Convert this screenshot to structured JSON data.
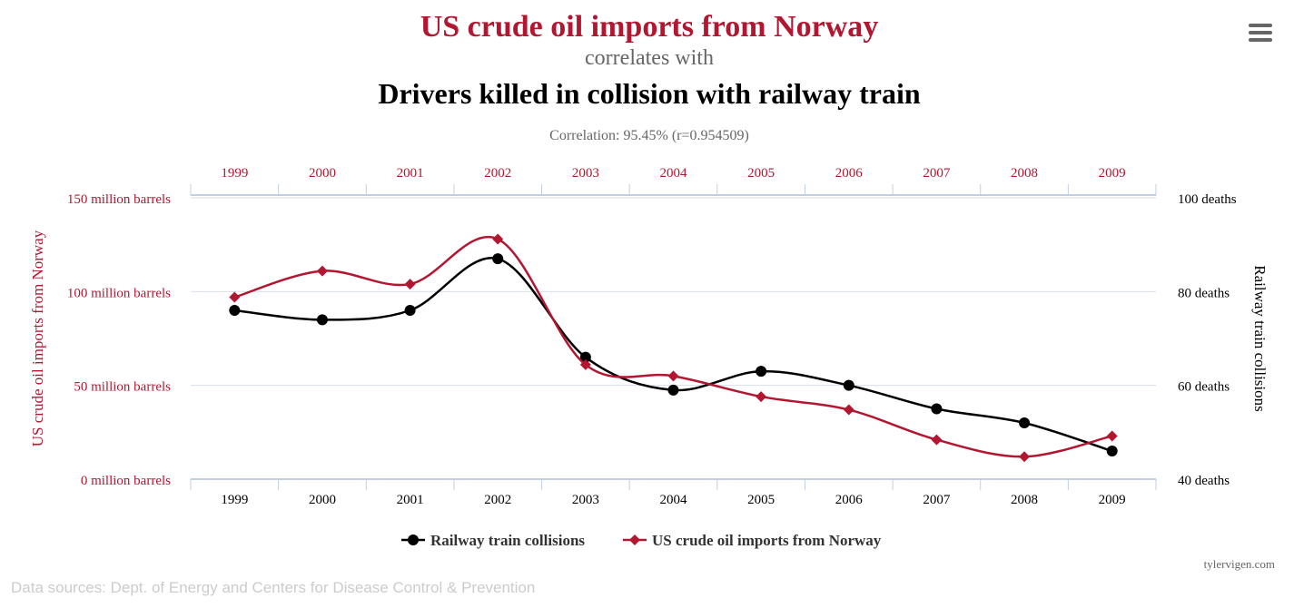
{
  "colors": {
    "series_a": "#b31630",
    "series_b": "#000000",
    "axis": "#c2cfe0",
    "grid": "#d8dde6",
    "subtle": "#666666",
    "footer": "#cccccc"
  },
  "icons": {
    "menu": "hamburger-menu-icon"
  },
  "chart_data": {
    "type": "line",
    "title": "US crude oil imports from Norway",
    "connector": "correlates with",
    "subtitle": "Drivers killed in collision with railway train",
    "correlation": "Correlation: 95.45% (r=0.954509)",
    "x": [
      "1999",
      "2000",
      "2001",
      "2002",
      "2003",
      "2004",
      "2005",
      "2006",
      "2007",
      "2008",
      "2009"
    ],
    "y_left": {
      "label": "US crude oil imports from Norway",
      "range": [
        0,
        150
      ],
      "ticks": [
        0,
        50,
        100,
        150
      ],
      "tick_labels": [
        "0 million barrels",
        "50 million barrels",
        "100 million barrels",
        "150 million barrels"
      ]
    },
    "y_right": {
      "label": "Railway train collisions",
      "range": [
        40,
        100
      ],
      "ticks": [
        40,
        60,
        80,
        100
      ],
      "tick_labels": [
        "40 deaths",
        "60 deaths",
        "80 deaths",
        "100 deaths"
      ]
    },
    "series": [
      {
        "name": "Railway train collisions",
        "axis": "right",
        "marker": "circle",
        "color": "#000000",
        "values": [
          76,
          74,
          76,
          87,
          66,
          59,
          63,
          60,
          55,
          52,
          46
        ]
      },
      {
        "name": "US crude oil imports from Norway",
        "axis": "left",
        "marker": "diamond",
        "color": "#b31630",
        "values": [
          97,
          111,
          104,
          128,
          61,
          55,
          44,
          37,
          21,
          12,
          23
        ]
      }
    ],
    "grid": true,
    "legend": "bottom-center"
  },
  "credit": "tylervigen.com",
  "footer": "Data sources: Dept. of Energy and Centers for Disease Control & Prevention"
}
